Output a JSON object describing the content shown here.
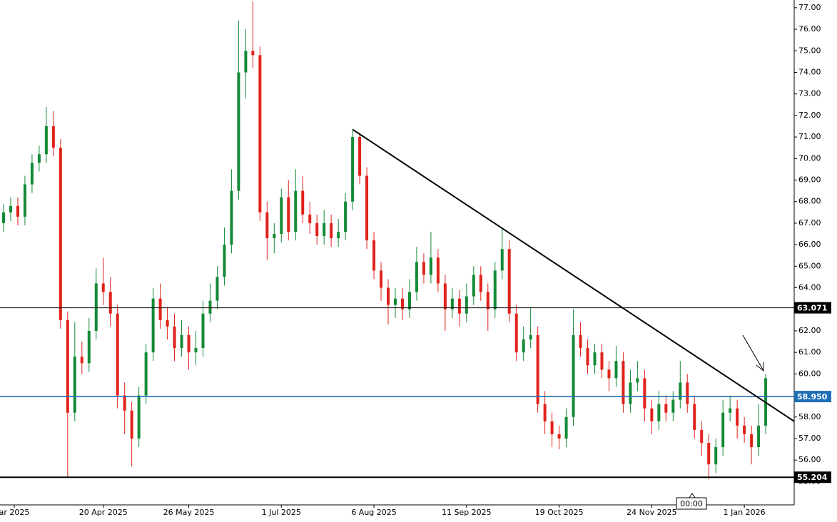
{
  "chart_data": {
    "type": "candlestick",
    "x": [
      1,
      3,
      5,
      7,
      9,
      11,
      13,
      15,
      17,
      19,
      21,
      23,
      25,
      27,
      29,
      31,
      33,
      35,
      37,
      39,
      41,
      43,
      45,
      47,
      49,
      51,
      53,
      55,
      57,
      59,
      61,
      63,
      65,
      67,
      69,
      71,
      73,
      75,
      77,
      79,
      81,
      83,
      85,
      87,
      89,
      91,
      93,
      95,
      97,
      99,
      101,
      103,
      105,
      107,
      109,
      111,
      113,
      115,
      117,
      119,
      121,
      123,
      125,
      127,
      129,
      131,
      133,
      135,
      137,
      139,
      141,
      143,
      145,
      147,
      149,
      151,
      153,
      155,
      157,
      159,
      161,
      163,
      165,
      167,
      169,
      171,
      173,
      175,
      177,
      179,
      181,
      183,
      185,
      187,
      189,
      191,
      193,
      195,
      197,
      199,
      201,
      203,
      205,
      207,
      209,
      211,
      213,
      215
    ],
    "open": [
      67.0,
      67.5,
      67.8,
      67.3,
      68.8,
      69.8,
      70.2,
      71.5,
      70.5,
      62.5,
      58.2,
      60.8,
      60.5,
      62.0,
      64.2,
      63.8,
      62.8,
      59.0,
      58.3,
      57.0,
      59.0,
      61.0,
      63.5,
      62.5,
      62.2,
      61.2,
      61.8,
      61.0,
      61.2,
      62.8,
      63.4,
      64.5,
      66.0,
      68.5,
      74.0,
      75.0,
      74.8,
      67.5,
      66.3,
      66.5,
      68.2,
      66.6,
      68.5,
      67.4,
      67.0,
      66.4,
      67.0,
      66.3,
      66.6,
      68.0,
      71.0,
      69.2,
      66.2,
      64.8,
      64.0,
      63.2,
      63.5,
      63.0,
      63.8,
      65.2,
      64.6,
      65.4,
      64.2,
      63.0,
      63.5,
      62.8,
      63.6,
      64.6,
      63.8,
      63.0,
      64.8,
      65.8,
      62.8,
      61.0,
      61.6,
      61.8,
      58.6,
      57.8,
      57.2,
      57.0,
      58.0,
      61.8,
      61.2,
      60.4,
      61.0,
      60.2,
      59.8,
      60.6,
      58.6,
      59.6,
      59.8,
      58.4,
      57.8,
      58.6,
      58.2,
      58.8,
      59.6,
      58.6,
      57.4,
      56.8,
      55.8,
      56.6,
      58.2,
      58.4,
      57.6,
      57.2,
      56.6,
      57.6
    ],
    "high": [
      67.9,
      68.2,
      68.2,
      69.2,
      70.2,
      70.6,
      72.4,
      72.2,
      70.9,
      62.9,
      62.4,
      61.5,
      62.6,
      64.9,
      65.4,
      64.5,
      63.2,
      59.6,
      58.7,
      59.4,
      61.4,
      64.0,
      64.2,
      63.1,
      62.8,
      62.5,
      62.2,
      62.0,
      63.4,
      64.2,
      65.0,
      66.8,
      69.5,
      76.4,
      76.0,
      77.3,
      75.2,
      68.0,
      67.0,
      68.6,
      69.0,
      69.5,
      69.2,
      68.0,
      67.4,
      67.6,
      67.4,
      67.2,
      68.4,
      71.3,
      71.2,
      69.6,
      66.6,
      65.2,
      64.4,
      64.0,
      64.0,
      64.4,
      65.9,
      65.6,
      66.6,
      65.8,
      64.6,
      64.0,
      63.9,
      64.2,
      65.0,
      65.0,
      64.2,
      65.2,
      66.8,
      66.2,
      63.2,
      62.2,
      63.1,
      62.2,
      59.2,
      58.2,
      57.6,
      58.4,
      63.0,
      62.4,
      61.6,
      61.4,
      61.4,
      60.6,
      61.3,
      61.0,
      60.2,
      60.6,
      60.2,
      58.8,
      59.2,
      59.0,
      59.2,
      60.6,
      60.0,
      59.0,
      57.8,
      57.2,
      57.0,
      58.8,
      59.0,
      58.8,
      58.0,
      57.6,
      58.6,
      60.0
    ],
    "low": [
      66.6,
      67.1,
      66.9,
      66.9,
      68.4,
      69.4,
      69.8,
      70.1,
      62.1,
      55.2,
      57.8,
      60.0,
      60.1,
      61.6,
      63.2,
      62.2,
      58.4,
      57.2,
      55.7,
      56.6,
      58.6,
      60.6,
      62.1,
      61.6,
      60.6,
      60.8,
      60.2,
      60.4,
      60.8,
      62.4,
      63.0,
      64.1,
      65.6,
      68.1,
      72.8,
      74.2,
      67.1,
      65.3,
      65.6,
      66.1,
      66.2,
      66.2,
      67.0,
      66.5,
      66.0,
      66.0,
      65.9,
      65.9,
      66.2,
      67.6,
      68.8,
      65.8,
      64.4,
      63.4,
      62.3,
      62.6,
      62.5,
      62.6,
      63.4,
      64.2,
      64.2,
      63.8,
      62.0,
      62.6,
      62.2,
      62.4,
      63.2,
      63.4,
      62.0,
      62.6,
      64.4,
      62.4,
      60.6,
      60.6,
      61.2,
      58.2,
      57.2,
      56.6,
      56.5,
      56.6,
      57.6,
      60.8,
      60.0,
      60.0,
      59.8,
      59.2,
      59.4,
      58.2,
      58.2,
      59.2,
      57.8,
      57.2,
      57.4,
      57.8,
      57.8,
      58.4,
      58.2,
      57.0,
      56.2,
      55.1,
      55.4,
      56.2,
      57.8,
      57.0,
      56.8,
      55.8,
      56.2,
      57.2
    ],
    "close": [
      67.5,
      67.8,
      67.3,
      68.8,
      69.8,
      70.2,
      71.5,
      70.5,
      62.5,
      58.2,
      60.8,
      60.5,
      62.0,
      64.2,
      63.8,
      62.8,
      59.0,
      58.3,
      57.0,
      59.0,
      61.0,
      63.5,
      62.5,
      62.2,
      61.2,
      61.8,
      61.0,
      61.2,
      62.8,
      63.4,
      64.5,
      66.0,
      68.5,
      74.0,
      75.0,
      74.8,
      67.5,
      66.3,
      66.5,
      68.2,
      66.6,
      68.5,
      67.4,
      67.0,
      66.4,
      67.0,
      66.3,
      66.6,
      68.0,
      71.0,
      69.2,
      66.2,
      64.8,
      64.0,
      63.2,
      63.5,
      63.0,
      63.8,
      65.2,
      64.6,
      65.4,
      64.2,
      63.0,
      63.5,
      62.8,
      63.6,
      64.6,
      63.8,
      63.0,
      64.8,
      65.8,
      62.8,
      61.0,
      61.6,
      61.8,
      58.6,
      57.8,
      57.2,
      57.0,
      58.0,
      61.8,
      61.2,
      60.4,
      61.0,
      60.2,
      59.8,
      60.6,
      58.6,
      59.6,
      59.8,
      58.4,
      57.8,
      58.6,
      58.2,
      58.8,
      59.6,
      58.6,
      57.4,
      56.8,
      55.8,
      56.6,
      58.2,
      58.4,
      57.6,
      57.2,
      56.6,
      57.6,
      59.8
    ],
    "up_color": "#138a36",
    "down_color": "#e0221b",
    "xlim": [
      0,
      223
    ],
    "xticks": [
      {
        "value": 4,
        "label": "ar 2025"
      },
      {
        "value": 29,
        "label": "20 Apr 2025"
      },
      {
        "value": 53,
        "label": "26 May 2025"
      },
      {
        "value": 79,
        "label": "1 Jul 2025"
      },
      {
        "value": 105,
        "label": "6 Aug 2025"
      },
      {
        "value": 131,
        "label": "11 Sep 2025"
      },
      {
        "value": 157,
        "label": "19 Oct 2025"
      },
      {
        "value": 183,
        "label": "24 Nov 2025"
      },
      {
        "value": 209,
        "label": "1 Jan 2026"
      }
    ],
    "ylim": [
      53.92,
      77.36
    ],
    "yticks": [
      {
        "value": 55,
        "label": "55.00"
      },
      {
        "value": 56,
        "label": "56.00"
      },
      {
        "value": 57,
        "label": "57.00"
      },
      {
        "value": 58,
        "label": "58.00"
      },
      {
        "value": 59,
        "label": "59.00"
      },
      {
        "value": 60,
        "label": "60.00"
      },
      {
        "value": 61,
        "label": "61.00"
      },
      {
        "value": 62,
        "label": "62.00"
      },
      {
        "value": 63,
        "label": "63.00"
      },
      {
        "value": 64,
        "label": "64.00"
      },
      {
        "value": 65,
        "label": "65.00"
      },
      {
        "value": 66,
        "label": "66.00"
      },
      {
        "value": 67,
        "label": "67.00"
      },
      {
        "value": 68,
        "label": "68.00"
      },
      {
        "value": 69,
        "label": "69.00"
      },
      {
        "value": 70,
        "label": "70.00"
      },
      {
        "value": 71,
        "label": "71.00"
      },
      {
        "value": 72,
        "label": "72.00"
      },
      {
        "value": 73,
        "label": "73.00"
      },
      {
        "value": 74,
        "label": "74.00"
      },
      {
        "value": 75,
        "label": "75.00"
      },
      {
        "value": 76,
        "label": "76.00"
      },
      {
        "value": 77,
        "label": "77.00"
      }
    ],
    "levels": [
      {
        "value": 63.071,
        "color": "#000000"
      },
      {
        "value": 58.95,
        "label": "58.950",
        "color": "#1f6fb5"
      },
      {
        "value": 55.204,
        "color": "#000000"
      }
    ],
    "trendline": {
      "x": [
        99,
        223
      ],
      "y": [
        71.35,
        57.8
      ],
      "color": "#000000"
    },
    "crosshair_label": "00:00"
  }
}
